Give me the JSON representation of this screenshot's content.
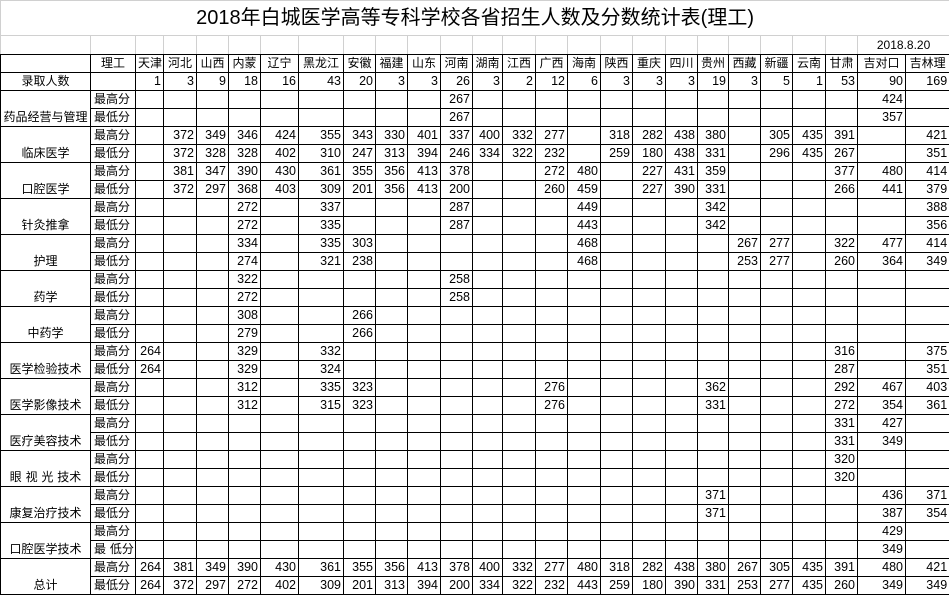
{
  "title": "2018年白城医学高等专科学校各省招生人数及分数统计表(理工)",
  "date": "2018.8.20",
  "header": {
    "category": "理工",
    "provinces": [
      "天津",
      "河北",
      "山西",
      "内蒙",
      "辽宁",
      "黑龙江",
      "安徽",
      "福建",
      "山东",
      "河南",
      "湖南",
      "江西",
      "广西",
      "海南",
      "陕西",
      "重庆",
      "四川",
      "贵州",
      "西藏",
      "新疆",
      "云南",
      "甘肃",
      "吉对口",
      "吉林理"
    ]
  },
  "enrollment": {
    "label": "录取人数",
    "values": [
      1,
      3,
      9,
      18,
      16,
      43,
      20,
      3,
      3,
      26,
      3,
      2,
      12,
      6,
      3,
      3,
      3,
      19,
      3,
      5,
      1,
      53,
      90,
      169
    ]
  },
  "groups": [
    {
      "name": "药品经营与管理",
      "rows": [
        {
          "label": "最高分",
          "values": [
            "",
            "",
            "",
            "",
            "",
            "",
            "",
            "",
            "",
            267,
            "",
            "",
            "",
            "",
            "",
            "",
            "",
            "",
            "",
            "",
            "",
            "",
            424,
            ""
          ]
        },
        {
          "label": "最低分",
          "values": [
            "",
            "",
            "",
            "",
            "",
            "",
            "",
            "",
            "",
            267,
            "",
            "",
            "",
            "",
            "",
            "",
            "",
            "",
            "",
            "",
            "",
            "",
            357,
            ""
          ]
        }
      ]
    },
    {
      "name": "临床医学",
      "rows": [
        {
          "label": "最高分",
          "values": [
            "",
            372,
            349,
            346,
            424,
            355,
            343,
            330,
            401,
            337,
            400,
            332,
            277,
            "",
            318,
            282,
            438,
            380,
            "",
            305,
            435,
            391,
            "",
            421
          ]
        },
        {
          "label": "最低分",
          "values": [
            "",
            372,
            328,
            328,
            402,
            310,
            247,
            313,
            394,
            246,
            334,
            322,
            232,
            "",
            259,
            180,
            438,
            331,
            "",
            296,
            435,
            267,
            "",
            351
          ]
        }
      ]
    },
    {
      "name": "口腔医学",
      "rows": [
        {
          "label": "最高分",
          "values": [
            "",
            381,
            347,
            390,
            430,
            361,
            355,
            356,
            413,
            378,
            "",
            "",
            272,
            480,
            "",
            227,
            431,
            359,
            "",
            "",
            "",
            377,
            480,
            414
          ]
        },
        {
          "label": "最低分",
          "values": [
            "",
            372,
            297,
            368,
            403,
            309,
            201,
            356,
            413,
            200,
            "",
            "",
            260,
            459,
            "",
            227,
            390,
            331,
            "",
            "",
            "",
            266,
            441,
            379
          ]
        }
      ]
    },
    {
      "name": "针灸推拿",
      "rows": [
        {
          "label": "最高分",
          "values": [
            "",
            "",
            "",
            272,
            "",
            337,
            "",
            "",
            "",
            287,
            "",
            "",
            "",
            449,
            "",
            "",
            "",
            342,
            "",
            "",
            "",
            "",
            "",
            388
          ]
        },
        {
          "label": "最低分",
          "values": [
            "",
            "",
            "",
            272,
            "",
            335,
            "",
            "",
            "",
            287,
            "",
            "",
            "",
            443,
            "",
            "",
            "",
            342,
            "",
            "",
            "",
            "",
            "",
            356
          ]
        }
      ]
    },
    {
      "name": "护理",
      "rows": [
        {
          "label": "最高分",
          "values": [
            "",
            "",
            "",
            334,
            "",
            335,
            303,
            "",
            "",
            "",
            "",
            "",
            "",
            468,
            "",
            "",
            "",
            "",
            267,
            277,
            "",
            322,
            477,
            414
          ]
        },
        {
          "label": "最低分",
          "values": [
            "",
            "",
            "",
            274,
            "",
            321,
            238,
            "",
            "",
            "",
            "",
            "",
            "",
            468,
            "",
            "",
            "",
            "",
            253,
            277,
            "",
            260,
            364,
            349
          ]
        }
      ]
    },
    {
      "name": "药学",
      "rows": [
        {
          "label": "最高分",
          "values": [
            "",
            "",
            "",
            322,
            "",
            "",
            "",
            "",
            "",
            258,
            "",
            "",
            "",
            "",
            "",
            "",
            "",
            "",
            "",
            "",
            "",
            "",
            "",
            ""
          ]
        },
        {
          "label": "最低分",
          "values": [
            "",
            "",
            "",
            272,
            "",
            "",
            "",
            "",
            "",
            258,
            "",
            "",
            "",
            "",
            "",
            "",
            "",
            "",
            "",
            "",
            "",
            "",
            "",
            ""
          ]
        }
      ]
    },
    {
      "name": "中药学",
      "rows": [
        {
          "label": "最高分",
          "values": [
            "",
            "",
            "",
            308,
            "",
            "",
            266,
            "",
            "",
            "",
            "",
            "",
            "",
            "",
            "",
            "",
            "",
            "",
            "",
            "",
            "",
            "",
            "",
            ""
          ]
        },
        {
          "label": "最低分",
          "values": [
            "",
            "",
            "",
            279,
            "",
            "",
            266,
            "",
            "",
            "",
            "",
            "",
            "",
            "",
            "",
            "",
            "",
            "",
            "",
            "",
            "",
            "",
            "",
            ""
          ]
        }
      ]
    },
    {
      "name": "医学检验技术",
      "rows": [
        {
          "label": "最高分",
          "values": [
            264,
            "",
            "",
            329,
            "",
            332,
            "",
            "",
            "",
            "",
            "",
            "",
            "",
            "",
            "",
            "",
            "",
            "",
            "",
            "",
            "",
            316,
            "",
            375
          ]
        },
        {
          "label": "最低分",
          "values": [
            264,
            "",
            "",
            329,
            "",
            324,
            "",
            "",
            "",
            "",
            "",
            "",
            "",
            "",
            "",
            "",
            "",
            "",
            "",
            "",
            "",
            287,
            "",
            351
          ]
        }
      ]
    },
    {
      "name": "医学影像技术",
      "rows": [
        {
          "label": "最高分",
          "values": [
            "",
            "",
            "",
            312,
            "",
            335,
            323,
            "",
            "",
            "",
            "",
            "",
            276,
            "",
            "",
            "",
            "",
            362,
            "",
            "",
            "",
            292,
            467,
            403
          ]
        },
        {
          "label": "最低分",
          "values": [
            "",
            "",
            "",
            312,
            "",
            315,
            323,
            "",
            "",
            "",
            "",
            "",
            276,
            "",
            "",
            "",
            "",
            331,
            "",
            "",
            "",
            272,
            354,
            361
          ]
        }
      ]
    },
    {
      "name": "医疗美容技术",
      "rows": [
        {
          "label": "最高分",
          "values": [
            "",
            "",
            "",
            "",
            "",
            "",
            "",
            "",
            "",
            "",
            "",
            "",
            "",
            "",
            "",
            "",
            "",
            "",
            "",
            "",
            "",
            331,
            427,
            ""
          ]
        },
        {
          "label": "最低分",
          "values": [
            "",
            "",
            "",
            "",
            "",
            "",
            "",
            "",
            "",
            "",
            "",
            "",
            "",
            "",
            "",
            "",
            "",
            "",
            "",
            "",
            "",
            331,
            349,
            ""
          ]
        }
      ]
    },
    {
      "name": "眼 视 光 技术",
      "rows": [
        {
          "label": "最高分",
          "values": [
            "",
            "",
            "",
            "",
            "",
            "",
            "",
            "",
            "",
            "",
            "",
            "",
            "",
            "",
            "",
            "",
            "",
            "",
            "",
            "",
            "",
            320,
            "",
            ""
          ]
        },
        {
          "label": "最低分",
          "values": [
            "",
            "",
            "",
            "",
            "",
            "",
            "",
            "",
            "",
            "",
            "",
            "",
            "",
            "",
            "",
            "",
            "",
            "",
            "",
            "",
            "",
            320,
            "",
            ""
          ]
        }
      ]
    },
    {
      "name": "康复治疗技术",
      "rows": [
        {
          "label": "最高分",
          "values": [
            "",
            "",
            "",
            "",
            "",
            "",
            "",
            "",
            "",
            "",
            "",
            "",
            "",
            "",
            "",
            "",
            "",
            371,
            "",
            "",
            "",
            "",
            436,
            371
          ]
        },
        {
          "label": "最低分",
          "values": [
            "",
            "",
            "",
            "",
            "",
            "",
            "",
            "",
            "",
            "",
            "",
            "",
            "",
            "",
            "",
            "",
            "",
            371,
            "",
            "",
            "",
            "",
            387,
            354
          ]
        }
      ]
    },
    {
      "name": "口腔医学技术",
      "rows": [
        {
          "label": "最高分",
          "values": [
            "",
            "",
            "",
            "",
            "",
            "",
            "",
            "",
            "",
            "",
            "",
            "",
            "",
            "",
            "",
            "",
            "",
            "",
            "",
            "",
            "",
            "",
            429,
            ""
          ]
        },
        {
          "label": "最 低分",
          "values": [
            "",
            "",
            "",
            "",
            "",
            "",
            "",
            "",
            "",
            "",
            "",
            "",
            "",
            "",
            "",
            "",
            "",
            "",
            "",
            "",
            "",
            "",
            349,
            ""
          ]
        }
      ]
    },
    {
      "name": "总计",
      "rows": [
        {
          "label": "最高分",
          "values": [
            264,
            381,
            349,
            390,
            430,
            361,
            355,
            356,
            413,
            378,
            400,
            332,
            277,
            480,
            318,
            282,
            438,
            380,
            267,
            305,
            435,
            391,
            480,
            421
          ]
        },
        {
          "label": "最低分",
          "values": [
            264,
            372,
            297,
            272,
            402,
            309,
            201,
            313,
            394,
            200,
            334,
            322,
            232,
            443,
            259,
            180,
            390,
            331,
            253,
            277,
            435,
            260,
            349,
            349
          ]
        }
      ]
    }
  ]
}
